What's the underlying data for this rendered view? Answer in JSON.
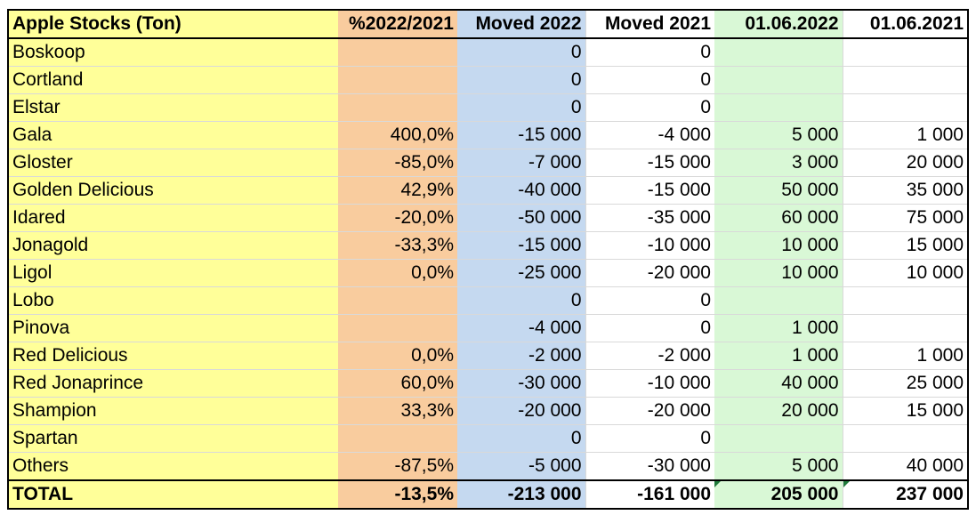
{
  "table": {
    "headers": {
      "name": "Apple Stocks (Ton)",
      "pct": "%2022/2021",
      "moved_2022": "Moved 2022",
      "moved_2021": "Moved 2021",
      "date_2022": "01.06.2022",
      "date_2021": "01.06.2021"
    },
    "rows": [
      {
        "name": "Boskoop",
        "pct": "",
        "moved_2022": "0",
        "moved_2021": "0",
        "date_2022": "",
        "date_2021": ""
      },
      {
        "name": "Cortland",
        "pct": "",
        "moved_2022": "0",
        "moved_2021": "0",
        "date_2022": "",
        "date_2021": ""
      },
      {
        "name": "Elstar",
        "pct": "",
        "moved_2022": "0",
        "moved_2021": "0",
        "date_2022": "",
        "date_2021": ""
      },
      {
        "name": "Gala",
        "pct": "400,0%",
        "moved_2022": "-15 000",
        "moved_2021": "-4 000",
        "date_2022": "5 000",
        "date_2021": "1 000"
      },
      {
        "name": "Gloster",
        "pct": "-85,0%",
        "moved_2022": "-7 000",
        "moved_2021": "-15 000",
        "date_2022": "3 000",
        "date_2021": "20 000"
      },
      {
        "name": "Golden Delicious",
        "pct": "42,9%",
        "moved_2022": "-40 000",
        "moved_2021": "-15 000",
        "date_2022": "50 000",
        "date_2021": "35 000"
      },
      {
        "name": "Idared",
        "pct": "-20,0%",
        "moved_2022": "-50 000",
        "moved_2021": "-35 000",
        "date_2022": "60 000",
        "date_2021": "75 000"
      },
      {
        "name": "Jonagold",
        "pct": "-33,3%",
        "moved_2022": "-15 000",
        "moved_2021": "-10 000",
        "date_2022": "10 000",
        "date_2021": "15 000"
      },
      {
        "name": "Ligol",
        "pct": "0,0%",
        "moved_2022": "-25 000",
        "moved_2021": "-20 000",
        "date_2022": "10 000",
        "date_2021": "10 000"
      },
      {
        "name": "Lobo",
        "pct": "",
        "moved_2022": "0",
        "moved_2021": "0",
        "date_2022": "",
        "date_2021": ""
      },
      {
        "name": "Pinova",
        "pct": "",
        "moved_2022": "-4 000",
        "moved_2021": "0",
        "date_2022": "1 000",
        "date_2021": ""
      },
      {
        "name": "Red Delicious",
        "pct": "0,0%",
        "moved_2022": "-2 000",
        "moved_2021": "-2 000",
        "date_2022": "1 000",
        "date_2021": "1 000"
      },
      {
        "name": "Red Jonaprince",
        "pct": "60,0%",
        "moved_2022": "-30 000",
        "moved_2021": "-10 000",
        "date_2022": "40 000",
        "date_2021": "25 000"
      },
      {
        "name": "Shampion",
        "pct": "33,3%",
        "moved_2022": "-20 000",
        "moved_2021": "-20 000",
        "date_2022": "20 000",
        "date_2021": "15 000"
      },
      {
        "name": "Spartan",
        "pct": "",
        "moved_2022": "0",
        "moved_2021": "0",
        "date_2022": "",
        "date_2021": ""
      },
      {
        "name": "Others",
        "pct": "-87,5%",
        "moved_2022": "-5 000",
        "moved_2021": "-30 000",
        "date_2022": "5 000",
        "date_2021": "40 000"
      }
    ],
    "total": {
      "name": "TOTAL",
      "pct": "-13,5%",
      "moved_2022": "-213 000",
      "moved_2021": "-161 000",
      "date_2022": "205 000",
      "date_2021": "237 000"
    }
  },
  "colors": {
    "name_col": "#ffff99",
    "pct_col": "#f9cc9e",
    "moved_2022_col": "#c5d9f0",
    "date_2022_col": "#d9f8d6",
    "flag": "#1f7a3a"
  }
}
